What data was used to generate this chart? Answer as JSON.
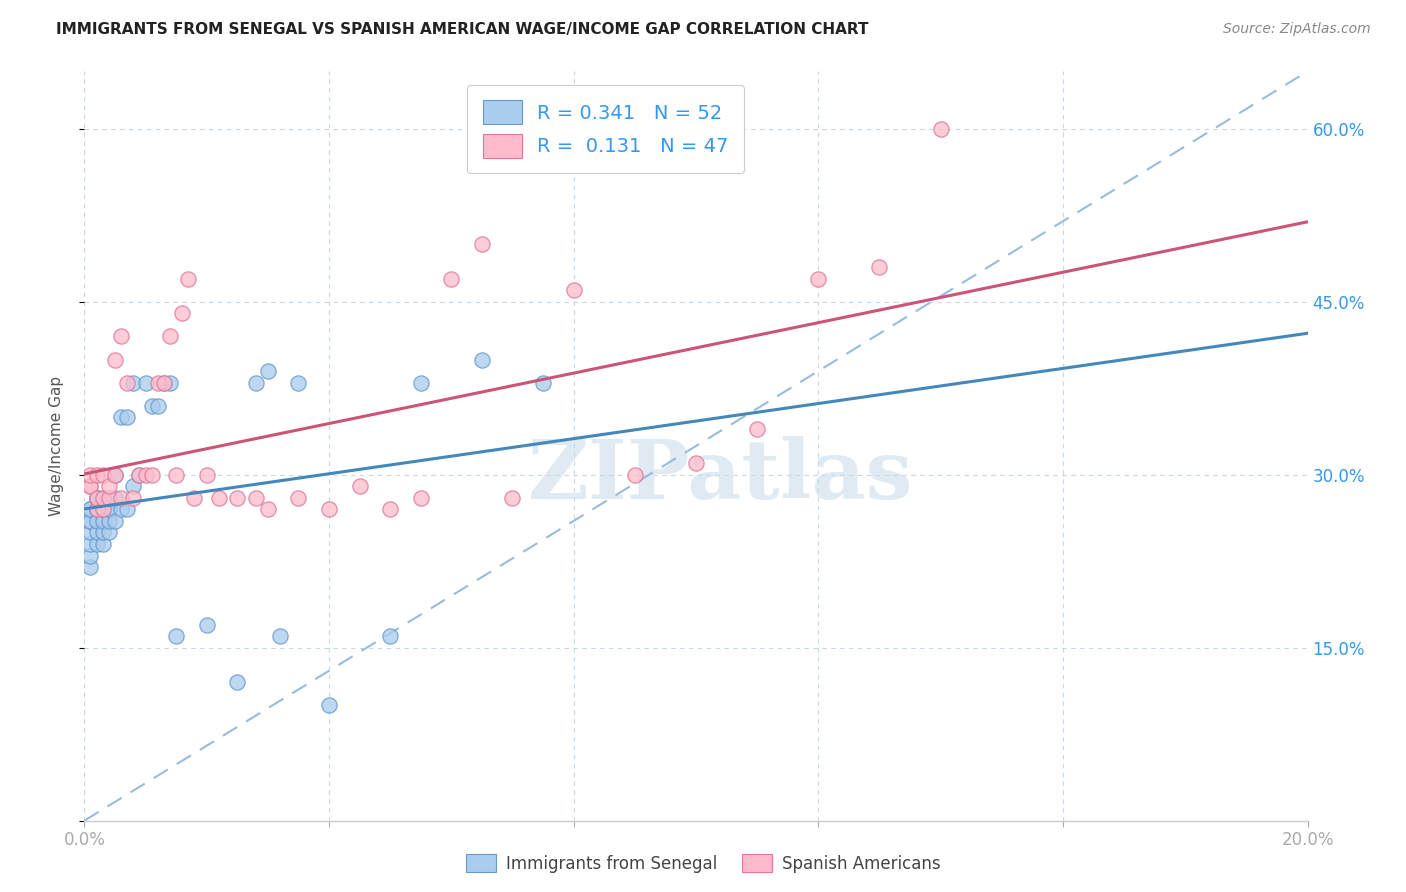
{
  "title": "IMMIGRANTS FROM SENEGAL VS SPANISH AMERICAN WAGE/INCOME GAP CORRELATION CHART",
  "source": "Source: ZipAtlas.com",
  "ylabel": "Wage/Income Gap",
  "xlim": [
    0.0,
    0.2
  ],
  "ylim": [
    0.0,
    0.65
  ],
  "blue_color": "#aaccee",
  "blue_edge_color": "#6699cc",
  "pink_color": "#ffbbcc",
  "pink_edge_color": "#dd7799",
  "blue_line_color": "#4488bb",
  "pink_line_color": "#cc5577",
  "dashed_line_color": "#99bbdd",
  "watermark_color": "#c8dae8",
  "watermark_text": "ZIPatlas",
  "legend_r1": "R = 0.341",
  "legend_n1": "N = 52",
  "legend_r2": "R =  0.131",
  "legend_n2": "N = 47",
  "blue_scatter_x": [
    0.001,
    0.001,
    0.001,
    0.001,
    0.001,
    0.001,
    0.001,
    0.001,
    0.002,
    0.002,
    0.002,
    0.002,
    0.002,
    0.002,
    0.002,
    0.003,
    0.003,
    0.003,
    0.003,
    0.003,
    0.003,
    0.004,
    0.004,
    0.004,
    0.004,
    0.005,
    0.005,
    0.005,
    0.006,
    0.006,
    0.007,
    0.007,
    0.008,
    0.008,
    0.009,
    0.01,
    0.011,
    0.012,
    0.013,
    0.014,
    0.015,
    0.02,
    0.025,
    0.028,
    0.03,
    0.032,
    0.035,
    0.04,
    0.05,
    0.055,
    0.065,
    0.075
  ],
  "blue_scatter_y": [
    0.22,
    0.23,
    0.24,
    0.25,
    0.26,
    0.26,
    0.27,
    0.27,
    0.24,
    0.25,
    0.26,
    0.27,
    0.27,
    0.28,
    0.28,
    0.24,
    0.25,
    0.26,
    0.27,
    0.27,
    0.28,
    0.25,
    0.26,
    0.27,
    0.27,
    0.26,
    0.28,
    0.3,
    0.27,
    0.35,
    0.27,
    0.35,
    0.29,
    0.38,
    0.3,
    0.38,
    0.36,
    0.36,
    0.38,
    0.38,
    0.16,
    0.17,
    0.12,
    0.38,
    0.39,
    0.16,
    0.38,
    0.1,
    0.16,
    0.38,
    0.4,
    0.38
  ],
  "pink_scatter_x": [
    0.001,
    0.001,
    0.001,
    0.002,
    0.002,
    0.002,
    0.003,
    0.003,
    0.003,
    0.004,
    0.004,
    0.005,
    0.005,
    0.006,
    0.006,
    0.007,
    0.008,
    0.009,
    0.01,
    0.011,
    0.012,
    0.013,
    0.014,
    0.015,
    0.016,
    0.017,
    0.018,
    0.02,
    0.022,
    0.025,
    0.028,
    0.03,
    0.035,
    0.04,
    0.045,
    0.05,
    0.055,
    0.06,
    0.065,
    0.07,
    0.08,
    0.09,
    0.1,
    0.11,
    0.12,
    0.13,
    0.14
  ],
  "pink_scatter_y": [
    0.29,
    0.29,
    0.3,
    0.27,
    0.28,
    0.3,
    0.27,
    0.28,
    0.3,
    0.28,
    0.29,
    0.3,
    0.4,
    0.28,
    0.42,
    0.38,
    0.28,
    0.3,
    0.3,
    0.3,
    0.38,
    0.38,
    0.42,
    0.3,
    0.44,
    0.47,
    0.28,
    0.3,
    0.28,
    0.28,
    0.28,
    0.27,
    0.28,
    0.27,
    0.29,
    0.27,
    0.28,
    0.47,
    0.5,
    0.28,
    0.46,
    0.3,
    0.31,
    0.34,
    0.47,
    0.48,
    0.6
  ]
}
